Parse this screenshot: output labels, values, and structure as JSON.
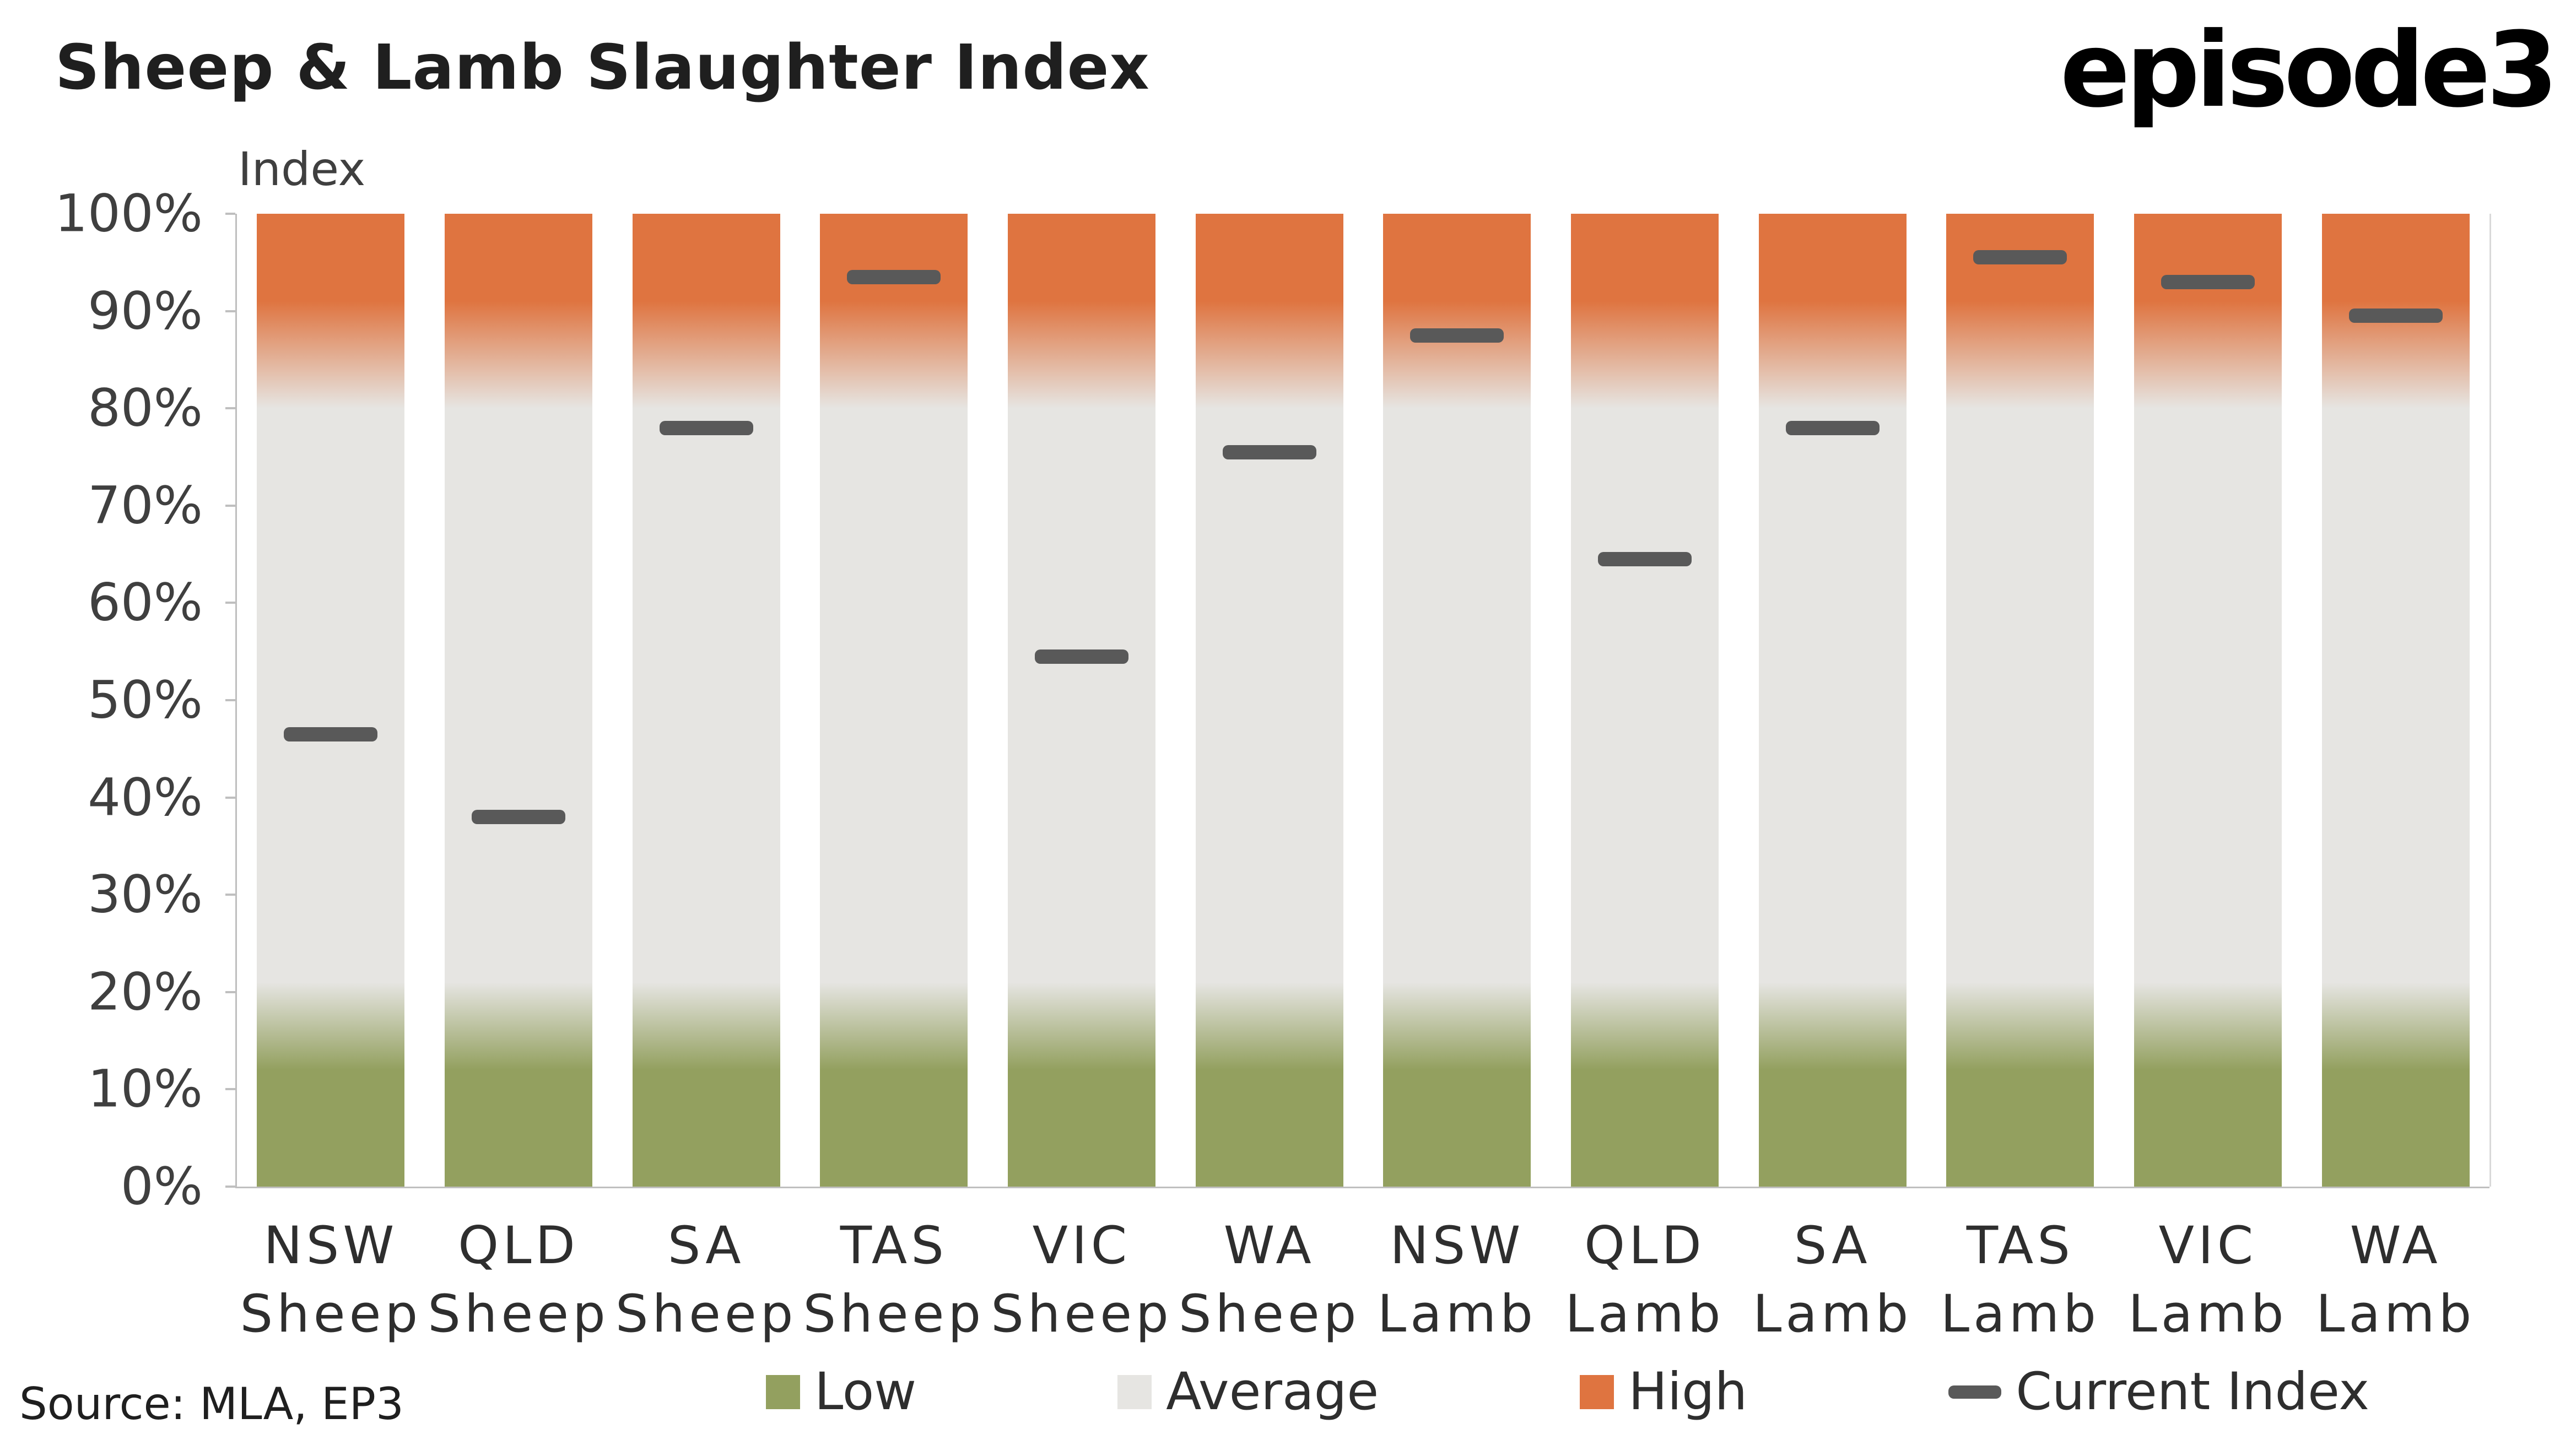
{
  "header": {
    "title": "Sheep & Lamb Slaughter Index",
    "logo": "episode3"
  },
  "source": "Source: MLA, EP3",
  "legend": {
    "items": [
      {
        "label": "Low",
        "shape": "square",
        "color": "#93A05F"
      },
      {
        "label": "Average",
        "shape": "square",
        "color": "#E6E5E2"
      },
      {
        "label": "High",
        "shape": "square",
        "color": "#DF7440"
      },
      {
        "label": "Current Index",
        "shape": "dash",
        "color": "#595959"
      }
    ]
  },
  "chart_data": {
    "type": "bar",
    "title": "Sheep & Lamb Slaughter Index",
    "ylabel": "Index",
    "xlabel": "",
    "ylim": [
      0,
      100
    ],
    "yticks": [
      "0%",
      "10%",
      "20%",
      "30%",
      "40%",
      "50%",
      "60%",
      "70%",
      "80%",
      "90%",
      "100%"
    ],
    "categories": [
      {
        "region": "NSW",
        "type": "Sheep"
      },
      {
        "region": "QLD",
        "type": "Sheep"
      },
      {
        "region": "SA",
        "type": "Sheep"
      },
      {
        "region": "TAS",
        "type": "Sheep"
      },
      {
        "region": "VIC",
        "type": "Sheep"
      },
      {
        "region": "WA",
        "type": "Sheep"
      },
      {
        "region": "NSW",
        "type": "Lamb"
      },
      {
        "region": "QLD",
        "type": "Lamb"
      },
      {
        "region": "SA",
        "type": "Lamb"
      },
      {
        "region": "TAS",
        "type": "Lamb"
      },
      {
        "region": "VIC",
        "type": "Lamb"
      },
      {
        "region": "WA",
        "type": "Lamb"
      }
    ],
    "series": [
      {
        "name": "Current Index",
        "values": [
          46.5,
          38,
          78,
          93.5,
          54.5,
          75.5,
          87.5,
          64.5,
          78,
          95.5,
          93,
          89.5
        ]
      }
    ],
    "bands": {
      "low": {
        "label": "Low",
        "range": [
          0,
          20
        ]
      },
      "average": {
        "label": "Average",
        "range": [
          20,
          85
        ]
      },
      "high": {
        "label": "High",
        "range": [
          85,
          100
        ]
      }
    },
    "gradient_stops": {
      "low_solid": 12,
      "low_fade": 21,
      "high_fade": 80,
      "high_solid": 91
    },
    "colors": {
      "low": "#93A05F",
      "average": "#E6E5E2",
      "high": "#DF7440",
      "marker": "#595959"
    },
    "grid": false,
    "legend_position": "bottom"
  }
}
